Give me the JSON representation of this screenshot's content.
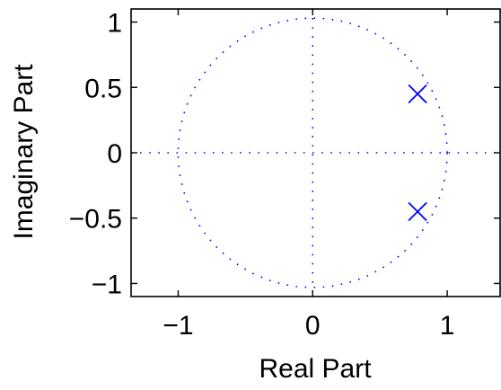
{
  "chart_data": {
    "type": "scatter",
    "xlabel": "Real Part",
    "ylabel": "Imaginary Part",
    "xlim": [
      -1.35,
      1.4
    ],
    "ylim": [
      -1.1,
      1.1
    ],
    "grid": false,
    "legend": "none",
    "x_ticks": [
      {
        "value": -1,
        "label": "−1"
      },
      {
        "value": 0,
        "label": "0"
      },
      {
        "value": 1,
        "label": "1"
      }
    ],
    "y_ticks": [
      {
        "value": -1,
        "label": "−1"
      },
      {
        "value": -0.5,
        "label": "−0.5"
      },
      {
        "value": 0,
        "label": "0"
      },
      {
        "value": 0.5,
        "label": "0.5"
      },
      {
        "value": 1,
        "label": "1"
      }
    ],
    "unit_circle": {
      "radius": 1,
      "style": "dotted",
      "color": "#0000ff"
    },
    "reference_lines": [
      {
        "orientation": "horizontal",
        "value": 0,
        "style": "dotted"
      },
      {
        "orientation": "vertical",
        "value": 0,
        "style": "dotted"
      }
    ],
    "series": [
      {
        "marker": "x",
        "color": "#0000ff",
        "points": [
          {
            "x": 0.78,
            "y": 0.45
          },
          {
            "x": 0.78,
            "y": -0.45
          }
        ]
      }
    ]
  }
}
